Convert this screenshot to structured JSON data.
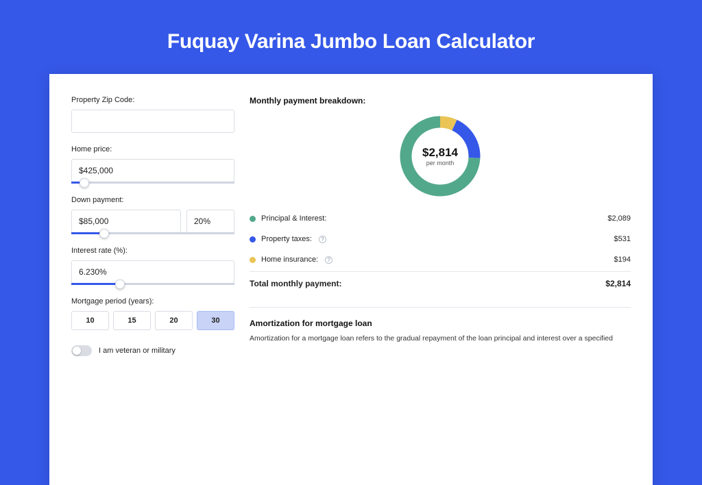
{
  "page": {
    "title": "Fuquay Varina Jumbo Loan Calculator"
  },
  "colors": {
    "page_bg": "#3558e8",
    "card_bg": "#ffffff",
    "border": "#d9dde3",
    "slider_track": "#cfd5df",
    "slider_fill": "#3558e8",
    "period_active_bg": "#c8d3f7",
    "series_principal": "#52a88b",
    "series_tax": "#3558e8",
    "series_insurance": "#eac455"
  },
  "form": {
    "zip": {
      "label": "Property Zip Code:",
      "value": ""
    },
    "price": {
      "label": "Home price:",
      "value": "$425,000",
      "slider_pct": 8
    },
    "down": {
      "label": "Down payment:",
      "value": "$85,000",
      "pct_value": "20%",
      "slider_pct": 20
    },
    "rate": {
      "label": "Interest rate (%):",
      "value": "6.230%",
      "slider_pct": 30
    },
    "period": {
      "label": "Mortgage period (years):",
      "options": [
        "10",
        "15",
        "20",
        "30"
      ],
      "selected_index": 3
    },
    "veteran": {
      "label": "I am veteran or military",
      "on": false
    }
  },
  "breakdown": {
    "title": "Monthly payment breakdown:",
    "donut": {
      "type": "donut",
      "amount": "$2,814",
      "sub": "per month",
      "slices": [
        {
          "key": "principal",
          "value": 2089,
          "color": "#52a88b"
        },
        {
          "key": "tax",
          "value": 531,
          "color": "#3558e8"
        },
        {
          "key": "insurance",
          "value": 194,
          "color": "#eac455"
        }
      ],
      "thickness": 17,
      "background_color": "#ffffff"
    },
    "rows": [
      {
        "dot": "#52a88b",
        "label": "Principal & Interest:",
        "info": false,
        "value": "$2,089"
      },
      {
        "dot": "#3558e8",
        "label": "Property taxes:",
        "info": true,
        "value": "$531"
      },
      {
        "dot": "#eac455",
        "label": "Home insurance:",
        "info": true,
        "value": "$194"
      }
    ],
    "total": {
      "label": "Total monthly payment:",
      "value": "$2,814"
    }
  },
  "amort": {
    "title": "Amortization for mortgage loan",
    "text": "Amortization for a mortgage loan refers to the gradual repayment of the loan principal and interest over a specified"
  }
}
